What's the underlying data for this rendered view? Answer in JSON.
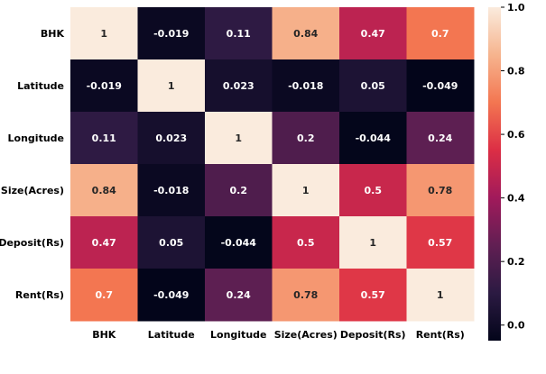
{
  "chart_data": {
    "type": "heatmap",
    "title": "",
    "xlabel": "",
    "ylabel": "",
    "x_labels": [
      "BHK",
      "Latitude",
      "Longitude",
      "Size(Acres)",
      "Deposit(Rs)",
      "Rent(Rs)"
    ],
    "y_labels": [
      "BHK",
      "Latitude",
      "Longitude",
      "Size(Acres)",
      "Deposit(Rs)",
      "Rent(Rs)"
    ],
    "values": [
      [
        1,
        -0.019,
        0.11,
        0.84,
        0.47,
        0.7
      ],
      [
        -0.019,
        1,
        0.023,
        -0.018,
        0.05,
        -0.049
      ],
      [
        0.11,
        0.023,
        1,
        0.2,
        -0.044,
        0.24
      ],
      [
        0.84,
        -0.018,
        0.2,
        1,
        0.5,
        0.78
      ],
      [
        0.47,
        0.05,
        -0.044,
        0.5,
        1,
        0.57
      ],
      [
        0.7,
        -0.049,
        0.24,
        0.78,
        0.57,
        1
      ]
    ],
    "cell_text": [
      [
        "1",
        "-0.019",
        "0.11",
        "0.84",
        "0.47",
        "0.7"
      ],
      [
        "-0.019",
        "1",
        "0.023",
        "-0.018",
        "0.05",
        "-0.049"
      ],
      [
        "0.11",
        "0.023",
        "1",
        "0.2",
        "-0.044",
        "0.24"
      ],
      [
        "0.84",
        "-0.018",
        "0.2",
        "1",
        "0.5",
        "0.78"
      ],
      [
        "0.47",
        "0.05",
        "-0.044",
        "0.5",
        "1",
        "0.57"
      ],
      [
        "0.7",
        "-0.049",
        "0.24",
        "0.78",
        "0.57",
        "1"
      ]
    ],
    "colormap": "rocket",
    "vmin": -0.049,
    "vmax": 1,
    "colorbar_ticks": [
      {
        "value": 1.0,
        "label": "1.0"
      },
      {
        "value": 0.8,
        "label": "0.8"
      },
      {
        "value": 0.6,
        "label": "0.6"
      },
      {
        "value": 0.4,
        "label": "0.4"
      },
      {
        "value": 0.2,
        "label": "0.2"
      },
      {
        "value": 0.0,
        "label": "0.0"
      }
    ],
    "colormap_stops": [
      "#03051a",
      "#2b1a42",
      "#611f53",
      "#a11a5b",
      "#dc2e45",
      "#f37651",
      "#f6b48e",
      "#faebdd"
    ],
    "annotation_colors": {
      "light_text": "#ffffff",
      "dark_text": "#262626"
    }
  }
}
